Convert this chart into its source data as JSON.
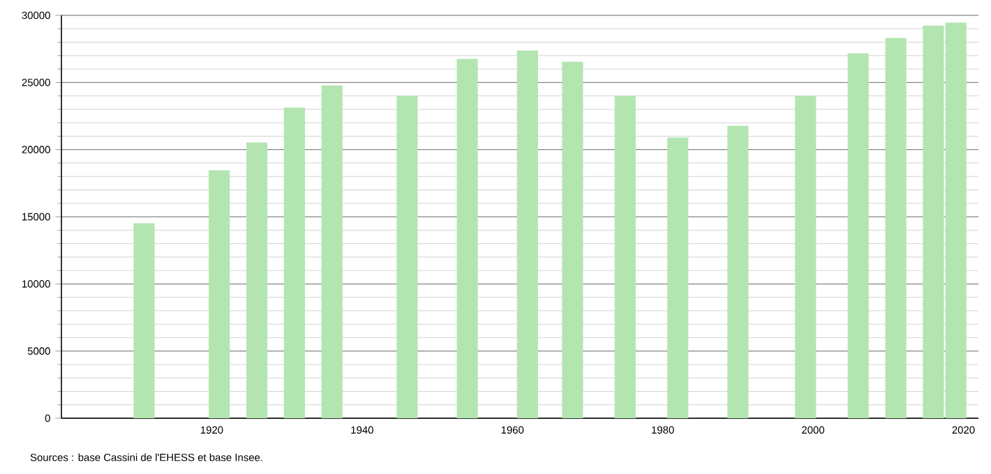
{
  "chart_data": {
    "type": "bar",
    "x": [
      1911,
      1921,
      1926,
      1931,
      1936,
      1946,
      1954,
      1962,
      1968,
      1975,
      1982,
      1990,
      1999,
      2006,
      2011,
      2016,
      2019
    ],
    "values": [
      14520,
      18460,
      20530,
      23130,
      24780,
      24020,
      26750,
      27380,
      26550,
      24020,
      20910,
      21780,
      24020,
      27170,
      28310,
      29240,
      29450
    ],
    "color": "#b3e5b0",
    "xlim": [
      1900,
      2022
    ],
    "xticks": [
      1920,
      1940,
      1960,
      1980,
      2000,
      2020
    ],
    "ylim": [
      0,
      30000
    ],
    "yticks": [
      0,
      5000,
      10000,
      15000,
      20000,
      25000,
      30000
    ],
    "grid": "y",
    "annotations": [
      "Sources : base Cassini de l'EHESS et base Insee."
    ]
  }
}
